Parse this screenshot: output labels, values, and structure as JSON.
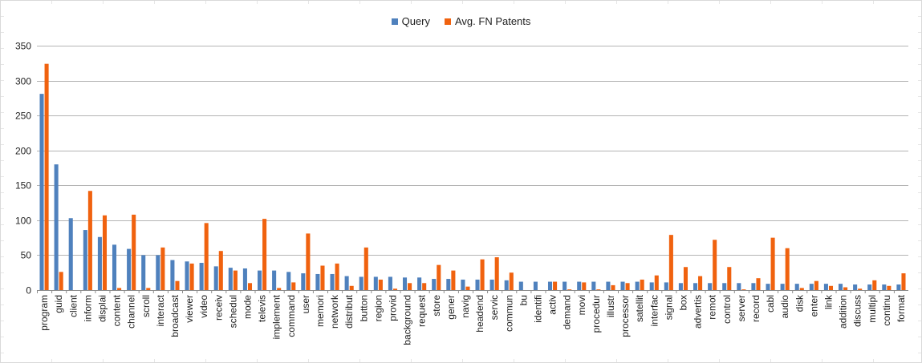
{
  "chart_data": {
    "type": "bar",
    "title": "",
    "xlabel": "",
    "ylabel": "",
    "ylim": [
      0,
      350
    ],
    "yticks": [
      0,
      50,
      100,
      150,
      200,
      250,
      300,
      350
    ],
    "grid": true,
    "legend_position": "top",
    "colors": {
      "Query": "#4f81bd",
      "Avg. FN Patents": "#f0620f"
    },
    "categories": [
      "program",
      "guid",
      "client",
      "inform",
      "displai",
      "content",
      "channel",
      "scroll",
      "interact",
      "broadcast",
      "viewer",
      "video",
      "receiv",
      "schedul",
      "mode",
      "televis",
      "implement",
      "command",
      "user",
      "memori",
      "network",
      "distribut",
      "button",
      "region",
      "provid",
      "background",
      "request",
      "store",
      "gener",
      "navig",
      "headend",
      "servic",
      "commun",
      "bu",
      "identifi",
      "activ",
      "demand",
      "movi",
      "procedur",
      "illustr",
      "processor",
      "satellit",
      "interfac",
      "signal",
      "box",
      "advertis",
      "remot",
      "control",
      "server",
      "record",
      "cabl",
      "audio",
      "disk",
      "enter",
      "link",
      "addition",
      "discuss",
      "multipl",
      "continu",
      "format"
    ],
    "series": [
      {
        "name": "Query",
        "values": [
          281,
          180,
          103,
          86,
          76,
          65,
          59,
          50,
          50,
          43,
          41,
          39,
          34,
          32,
          31,
          28,
          28,
          26,
          24,
          23,
          23,
          20,
          19,
          19,
          19,
          18,
          18,
          16,
          16,
          15,
          15,
          15,
          14,
          12,
          12,
          12,
          12,
          12,
          12,
          12,
          12,
          12,
          11,
          11,
          10,
          10,
          10,
          10,
          10,
          10,
          9,
          9,
          9,
          9,
          9,
          9,
          8,
          8,
          8,
          8
        ]
      },
      {
        "name": "Avg. FN Patents",
        "values": [
          324,
          26,
          0,
          142,
          107,
          3,
          108,
          3,
          61,
          13,
          38,
          96,
          56,
          28,
          10,
          102,
          3,
          11,
          81,
          35,
          38,
          6,
          61,
          15,
          2,
          10,
          10,
          36,
          28,
          5,
          44,
          47,
          25,
          0,
          0,
          12,
          1,
          11,
          1,
          7,
          10,
          15,
          21,
          79,
          33,
          20,
          72,
          33,
          1,
          17,
          75,
          60,
          3,
          13,
          6,
          4,
          2,
          14,
          6,
          24
        ]
      }
    ]
  }
}
